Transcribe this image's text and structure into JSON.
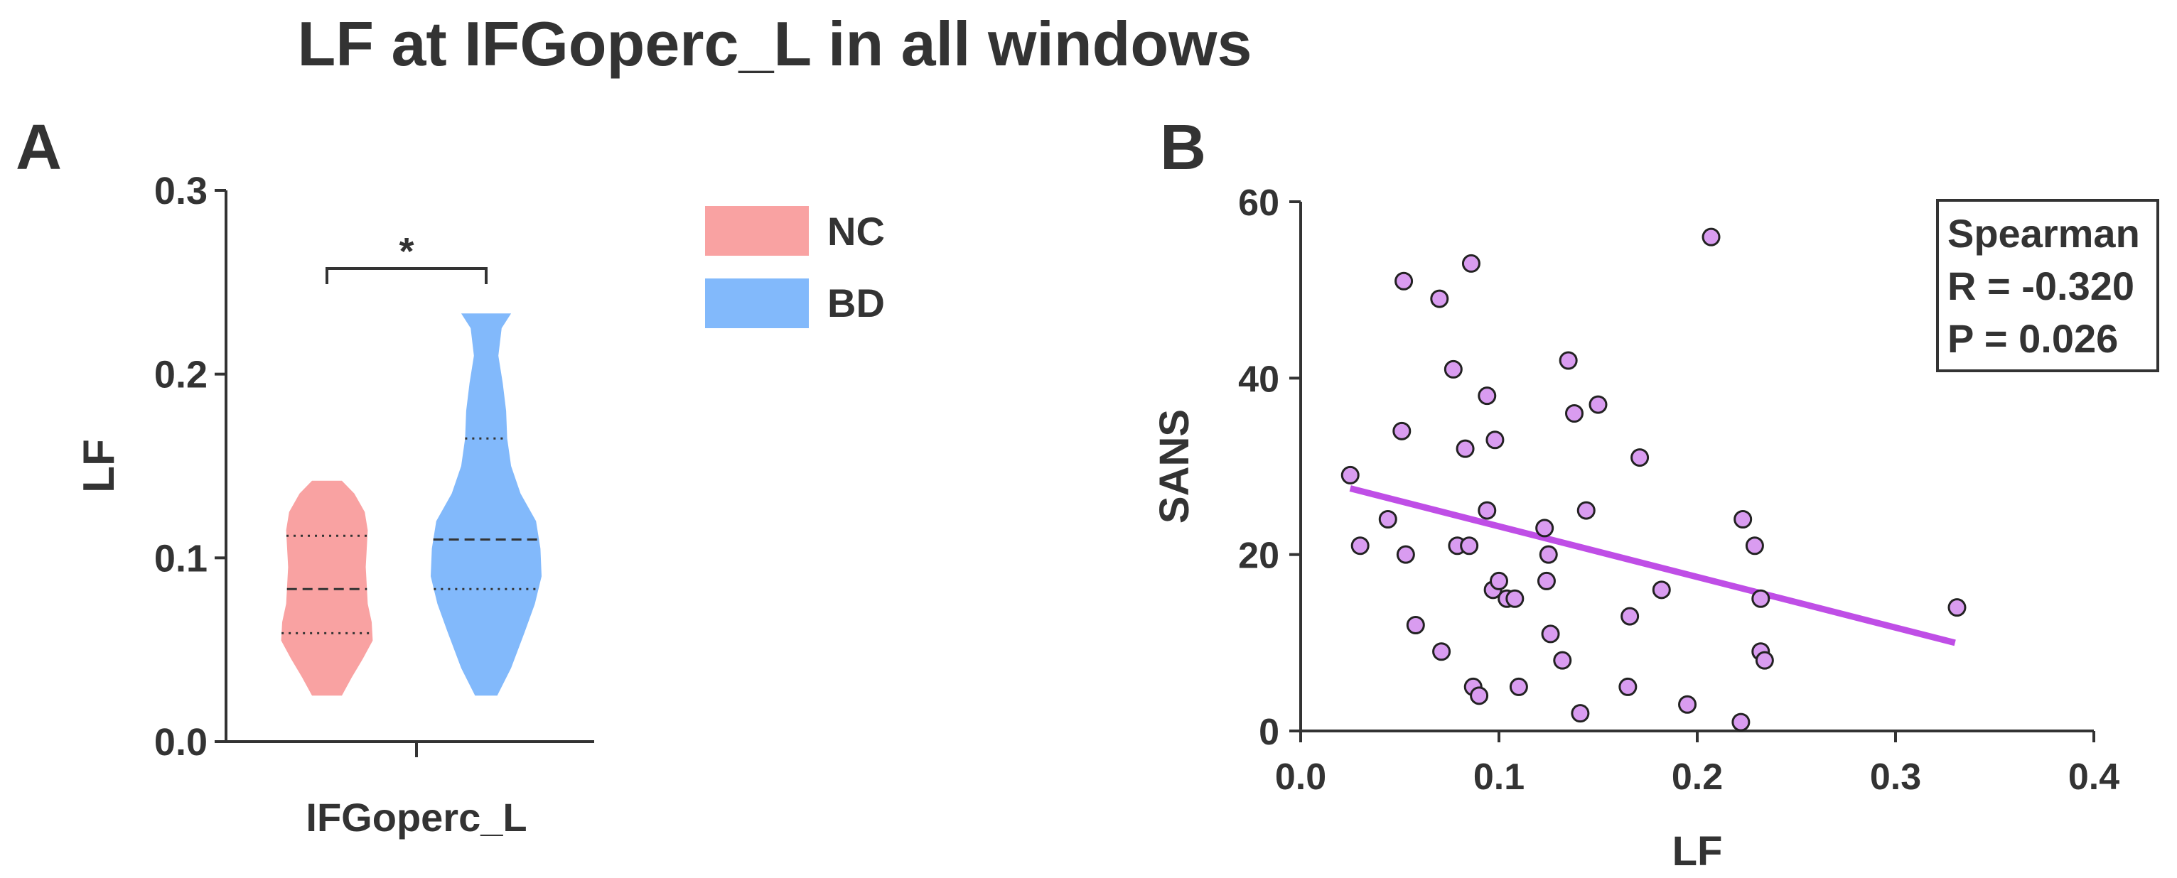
{
  "figure": {
    "title": "LF at IFGoperc_L in all windows"
  },
  "colors": {
    "nc": "#F9A2A2",
    "bd": "#82B9FB",
    "scatter_fill": "#D99CF0",
    "fit_line": "#BF4EE6",
    "ink": "#333333"
  },
  "chart_data": [
    {
      "type": "violin",
      "panel_label": "A",
      "ylabel": "LF",
      "ylim": [
        0,
        0.3
      ],
      "yticks": [
        "0.0",
        "0.1",
        "0.2",
        "0.3"
      ],
      "category": "IFGoperc_L",
      "legend": {
        "placement": "top-right",
        "entries": [
          "NC",
          "BD"
        ]
      },
      "significance": "*",
      "series": [
        {
          "name": "NC",
          "min": 0.025,
          "max": 0.142,
          "q1": 0.059,
          "median": 0.083,
          "q3": 0.112,
          "density": [
            [
              0.025,
              0.3
            ],
            [
              0.035,
              0.5
            ],
            [
              0.045,
              0.72
            ],
            [
              0.055,
              0.92
            ],
            [
              0.065,
              0.9
            ],
            [
              0.075,
              0.82
            ],
            [
              0.085,
              0.8
            ],
            [
              0.095,
              0.78
            ],
            [
              0.105,
              0.8
            ],
            [
              0.115,
              0.82
            ],
            [
              0.125,
              0.76
            ],
            [
              0.135,
              0.55
            ],
            [
              0.142,
              0.3
            ]
          ]
        },
        {
          "name": "BD",
          "min": 0.025,
          "max": 0.233,
          "q1": 0.083,
          "median": 0.11,
          "q3": 0.165,
          "density": [
            [
              0.025,
              0.2
            ],
            [
              0.04,
              0.45
            ],
            [
              0.06,
              0.7
            ],
            [
              0.075,
              0.88
            ],
            [
              0.09,
              1.0
            ],
            [
              0.105,
              0.98
            ],
            [
              0.12,
              0.9
            ],
            [
              0.135,
              0.62
            ],
            [
              0.15,
              0.45
            ],
            [
              0.165,
              0.38
            ],
            [
              0.18,
              0.36
            ],
            [
              0.195,
              0.3
            ],
            [
              0.21,
              0.22
            ],
            [
              0.225,
              0.28
            ],
            [
              0.233,
              0.45
            ]
          ]
        }
      ]
    },
    {
      "type": "scatter",
      "panel_label": "B",
      "xlabel": "LF",
      "ylabel": "SANS",
      "xlim": [
        0,
        0.4
      ],
      "ylim": [
        0,
        60
      ],
      "xticks": [
        "0.0",
        "0.1",
        "0.2",
        "0.3",
        "0.4"
      ],
      "yticks": [
        "0",
        "20",
        "40",
        "60"
      ],
      "annotation": [
        "Spearman",
        "R = -0.320",
        "P = 0.026"
      ],
      "fit": {
        "x1": 0.025,
        "y1": 27.5,
        "x2": 0.33,
        "y2": 10
      },
      "points": [
        [
          0.025,
          29
        ],
        [
          0.03,
          21
        ],
        [
          0.044,
          24
        ],
        [
          0.051,
          34
        ],
        [
          0.052,
          51
        ],
        [
          0.053,
          20
        ],
        [
          0.058,
          12
        ],
        [
          0.07,
          49
        ],
        [
          0.071,
          9
        ],
        [
          0.077,
          41
        ],
        [
          0.079,
          21
        ],
        [
          0.083,
          32
        ],
        [
          0.085,
          21
        ],
        [
          0.086,
          53
        ],
        [
          0.087,
          5
        ],
        [
          0.09,
          4
        ],
        [
          0.094,
          38
        ],
        [
          0.094,
          25
        ],
        [
          0.097,
          16
        ],
        [
          0.098,
          33
        ],
        [
          0.1,
          17
        ],
        [
          0.104,
          15
        ],
        [
          0.108,
          15
        ],
        [
          0.11,
          5
        ],
        [
          0.123,
          23
        ],
        [
          0.124,
          17
        ],
        [
          0.125,
          20
        ],
        [
          0.126,
          11
        ],
        [
          0.132,
          8
        ],
        [
          0.135,
          42
        ],
        [
          0.138,
          36
        ],
        [
          0.141,
          2
        ],
        [
          0.144,
          25
        ],
        [
          0.15,
          37
        ],
        [
          0.165,
          5
        ],
        [
          0.166,
          13
        ],
        [
          0.171,
          31
        ],
        [
          0.182,
          16
        ],
        [
          0.195,
          3
        ],
        [
          0.207,
          56
        ],
        [
          0.222,
          1
        ],
        [
          0.223,
          24
        ],
        [
          0.229,
          21
        ],
        [
          0.232,
          15
        ],
        [
          0.232,
          9
        ],
        [
          0.234,
          8
        ],
        [
          0.331,
          14
        ]
      ]
    }
  ]
}
